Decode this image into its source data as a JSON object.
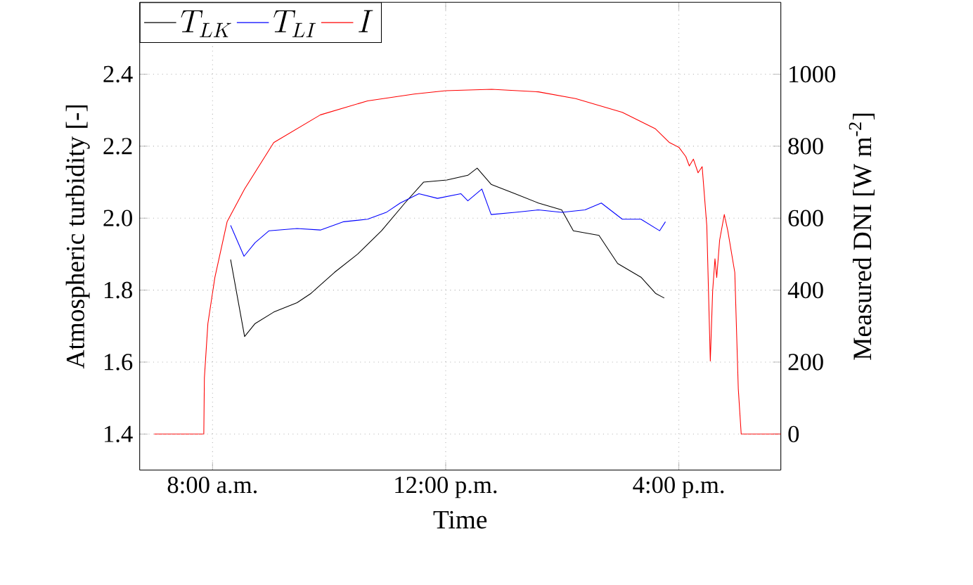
{
  "chart_data": {
    "type": "line",
    "xlabel": "Time",
    "ylabel": "Atmospheric turbidity [-]",
    "y2label": "Measured DNI [W m$^{-2}$]",
    "xlim": [
      6.75,
      17.75
    ],
    "xticks": [
      {
        "value": 8,
        "label": "8:00 a.m."
      },
      {
        "value": 12,
        "label": "12:00 p.m."
      },
      {
        "value": 16,
        "label": "4:00 p.m."
      }
    ],
    "ylim": [
      1.3,
      2.6
    ],
    "yticks": [
      1.4,
      1.6,
      1.8,
      {
        "value": 2,
        "label": "2.0"
      },
      2.2,
      2.4
    ],
    "y2lim": [
      -100,
      1200
    ],
    "y2ticks": [
      0,
      200,
      400,
      600,
      800,
      1000
    ],
    "grid": true,
    "legend": "top left",
    "line_style": "solid",
    "series": [
      {
        "name": "T_{LK}",
        "color": "#000000",
        "x": [
          8.31,
          8.55,
          8.73,
          9.05,
          9.45,
          9.69,
          10.09,
          10.49,
          10.9,
          11.3,
          11.62,
          12.02,
          12.38,
          12.54,
          12.78,
          13.19,
          13.59,
          13.99,
          14.19,
          14.63,
          14.95,
          15.35,
          15.6,
          15.75
        ],
        "values": [
          1.885,
          1.671,
          1.707,
          1.739,
          1.765,
          1.791,
          1.849,
          1.9,
          1.965,
          2.042,
          2.1,
          2.106,
          2.119,
          2.139,
          2.094,
          2.068,
          2.042,
          2.023,
          1.965,
          1.952,
          1.874,
          1.836,
          1.791,
          1.778
        ]
      },
      {
        "name": "T_{LI}",
        "color": "#0000ff",
        "x": [
          8.31,
          8.54,
          8.73,
          8.97,
          9.45,
          9.85,
          10.25,
          10.66,
          10.98,
          11.22,
          11.54,
          11.86,
          12.26,
          12.38,
          12.62,
          12.78,
          13.19,
          13.59,
          13.99,
          14.39,
          14.67,
          15.03,
          15.35,
          15.67,
          15.77
        ],
        "values": [
          1.98,
          1.894,
          1.932,
          1.965,
          1.971,
          1.967,
          1.99,
          1.997,
          2.016,
          2.042,
          2.068,
          2.055,
          2.068,
          2.048,
          2.081,
          2.01,
          2.016,
          2.023,
          2.016,
          2.023,
          2.042,
          1.997,
          1.997,
          1.965,
          1.99
        ]
      },
      {
        "name": "I",
        "color": "#ff0000",
        "axis": "y2",
        "x": [
          7.0,
          7.85,
          7.86,
          7.92,
          8.04,
          8.25,
          8.55,
          9.05,
          9.85,
          10.66,
          11.46,
          12.0,
          12.79,
          13.59,
          14.23,
          15.03,
          15.6,
          15.84,
          16.0,
          16.12,
          16.18,
          16.25,
          16.33,
          16.4,
          16.48,
          16.54,
          16.58,
          16.62,
          16.65,
          16.7,
          16.78,
          16.84,
          16.96,
          17.02,
          17.07,
          17.75
        ],
        "values": [
          0,
          0,
          156,
          307,
          435,
          590,
          681,
          810,
          887,
          926,
          945,
          954,
          958,
          951,
          932,
          894,
          848,
          810,
          797,
          771,
          745,
          764,
          726,
          743,
          578,
          203,
          397,
          487,
          435,
          539,
          610,
          565,
          449,
          126,
          0,
          0
        ]
      }
    ]
  }
}
